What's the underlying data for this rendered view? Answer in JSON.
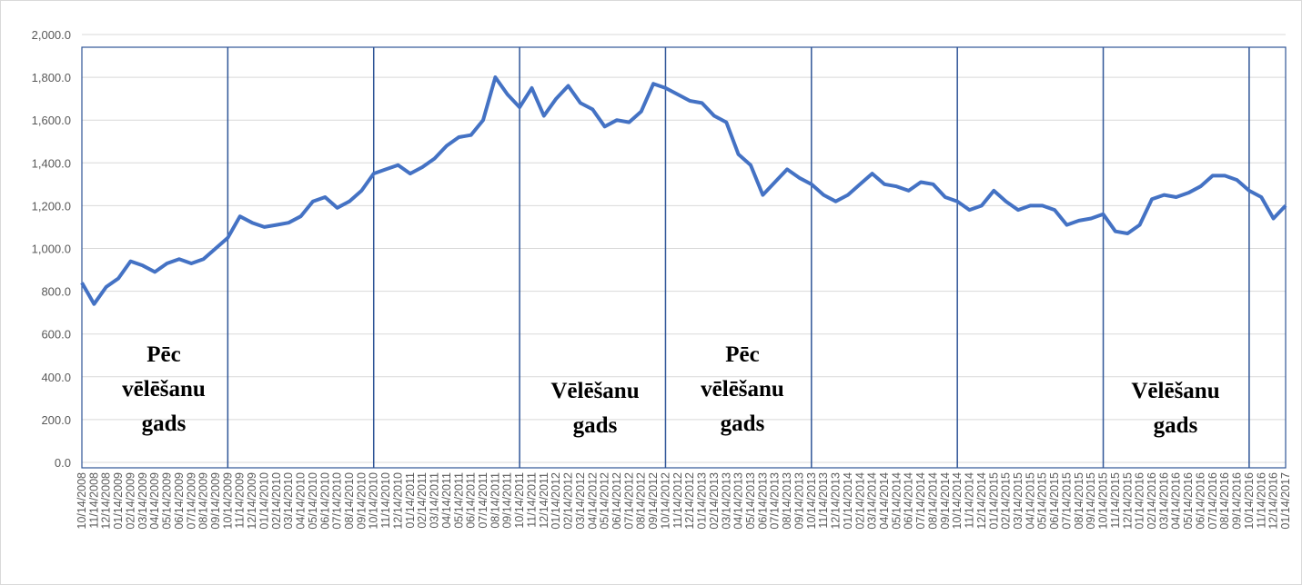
{
  "chart_data": {
    "type": "line",
    "categories": [
      "10/14/2008",
      "11/14/2008",
      "12/14/2008",
      "01/14/2009",
      "02/14/2009",
      "03/14/2009",
      "04/14/2009",
      "05/14/2009",
      "06/14/2009",
      "07/14/2009",
      "08/14/2009",
      "09/14/2009",
      "10/14/2009",
      "11/14/2009",
      "12/14/2009",
      "01/14/2010",
      "02/14/2010",
      "03/14/2010",
      "04/14/2010",
      "05/14/2010",
      "06/14/2010",
      "07/14/2010",
      "08/14/2010",
      "09/14/2010",
      "10/14/2010",
      "11/14/2010",
      "12/14/2010",
      "01/14/2011",
      "02/14/2011",
      "03/14/2011",
      "04/14/2011",
      "05/14/2011",
      "06/14/2011",
      "07/14/2011",
      "08/14/2011",
      "09/14/2011",
      "10/14/2011",
      "11/14/2011",
      "12/14/2011",
      "01/14/2012",
      "02/14/2012",
      "03/14/2012",
      "04/14/2012",
      "05/14/2012",
      "06/14/2012",
      "07/14/2012",
      "08/14/2012",
      "09/14/2012",
      "10/14/2012",
      "11/14/2012",
      "12/14/2012",
      "01/14/2013",
      "02/14/2013",
      "03/14/2013",
      "04/14/2013",
      "05/14/2013",
      "06/14/2013",
      "07/14/2013",
      "08/14/2013",
      "09/14/2013",
      "10/14/2013",
      "11/14/2013",
      "12/14/2013",
      "01/14/2014",
      "02/14/2014",
      "03/14/2014",
      "04/14/2014",
      "05/14/2014",
      "06/14/2014",
      "07/14/2014",
      "08/14/2014",
      "09/14/2014",
      "10/14/2014",
      "11/14/2014",
      "12/14/2014",
      "01/14/2015",
      "02/14/2015",
      "03/14/2015",
      "04/14/2015",
      "05/14/2015",
      "06/14/2015",
      "07/14/2015",
      "08/14/2015",
      "09/14/2015",
      "10/14/2015",
      "11/14/2015",
      "12/14/2015",
      "01/14/2016",
      "02/14/2016",
      "03/14/2016",
      "04/14/2016",
      "05/14/2016",
      "06/14/2016",
      "07/14/2016",
      "08/14/2016",
      "09/14/2016",
      "10/14/2016",
      "11/14/2016",
      "12/14/2016",
      "01/14/2017"
    ],
    "values": [
      840,
      740,
      820,
      860,
      940,
      920,
      890,
      930,
      950,
      930,
      950,
      1000,
      1050,
      1150,
      1120,
      1100,
      1110,
      1120,
      1150,
      1220,
      1240,
      1190,
      1220,
      1270,
      1350,
      1370,
      1390,
      1350,
      1380,
      1420,
      1480,
      1520,
      1530,
      1600,
      1800,
      1720,
      1660,
      1750,
      1620,
      1700,
      1760,
      1680,
      1650,
      1570,
      1600,
      1590,
      1640,
      1770,
      1750,
      1720,
      1690,
      1680,
      1620,
      1590,
      1440,
      1390,
      1250,
      1310,
      1370,
      1330,
      1300,
      1250,
      1220,
      1250,
      1300,
      1350,
      1300,
      1290,
      1270,
      1310,
      1300,
      1240,
      1220,
      1180,
      1200,
      1270,
      1220,
      1180,
      1200,
      1200,
      1180,
      1110,
      1130,
      1140,
      1160,
      1080,
      1070,
      1110,
      1230,
      1250,
      1240,
      1260,
      1290,
      1340,
      1340,
      1320,
      1270,
      1240,
      1140,
      1200
    ],
    "color": "#4472c4",
    "ylim": [
      0,
      2000
    ],
    "yticks": [
      {
        "value": 0,
        "label": "0.0"
      },
      {
        "value": 200,
        "label": "200.0"
      },
      {
        "value": 400,
        "label": "400.0"
      },
      {
        "value": 600,
        "label": "600.0"
      },
      {
        "value": 800,
        "label": "800.0"
      },
      {
        "value": 1000,
        "label": "1,000.0"
      },
      {
        "value": 1200,
        "label": "1,200.0"
      },
      {
        "value": 1400,
        "label": "1,400.0"
      },
      {
        "value": 1600,
        "label": "1,600.0"
      },
      {
        "value": 1800,
        "label": "1,800.0"
      },
      {
        "value": 2000,
        "label": "2,000.0"
      }
    ],
    "grid": true,
    "dividers": [
      "10/14/2009",
      "10/14/2010",
      "10/14/2011",
      "10/14/2012",
      "10/14/2013",
      "10/14/2014",
      "10/14/2015",
      "10/14/2016"
    ],
    "annotations": [
      [
        "Pēc",
        "vēlēšanu",
        "gads"
      ],
      [
        "Vēlēšanu",
        "gads"
      ],
      [
        "Pēc",
        "vēlēšanu",
        "gads"
      ],
      [
        "Vēlēšanu",
        "gads"
      ]
    ]
  }
}
